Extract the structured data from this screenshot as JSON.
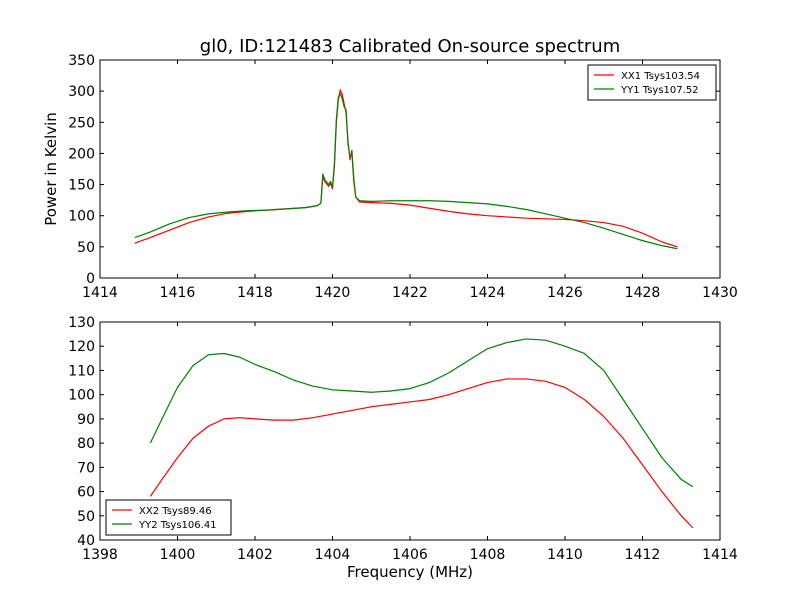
{
  "chart_data": [
    {
      "type": "line",
      "title": "gl0, ID:121483 Calibrated On-source spectrum",
      "xlabel": "",
      "ylabel": "Power in Kelvin",
      "xlim": [
        1414,
        1430
      ],
      "ylim": [
        0,
        350
      ],
      "xticks": [
        "1414",
        "1416",
        "1418",
        "1420",
        "1422",
        "1424",
        "1426",
        "1428",
        "1430"
      ],
      "yticks": [
        "0",
        "50",
        "100",
        "150",
        "200",
        "250",
        "300",
        "350"
      ],
      "grid": false,
      "legend_position": "top-right",
      "series": [
        {
          "name": "XX1 Tsys103.54",
          "color": "#ff0000",
          "x": [
            1414.9,
            1415.3,
            1415.8,
            1416.3,
            1416.8,
            1417.3,
            1417.8,
            1418.3,
            1418.8,
            1419.3,
            1419.6,
            1419.7,
            1419.75,
            1419.8,
            1419.9,
            1419.95,
            1420.0,
            1420.05,
            1420.1,
            1420.15,
            1420.2,
            1420.25,
            1420.3,
            1420.35,
            1420.4,
            1420.45,
            1420.5,
            1420.55,
            1420.6,
            1420.7,
            1421.0,
            1421.5,
            1422.0,
            1422.5,
            1423.0,
            1423.5,
            1424.0,
            1424.5,
            1425.0,
            1425.5,
            1426.0,
            1426.5,
            1427.0,
            1427.5,
            1428.0,
            1428.5,
            1428.9
          ],
          "y": [
            56,
            65,
            77,
            89,
            98,
            104,
            107,
            109,
            111,
            113,
            116,
            120,
            163,
            155,
            147,
            152,
            143,
            180,
            250,
            285,
            302,
            295,
            280,
            265,
            220,
            190,
            205,
            160,
            130,
            122,
            121,
            120,
            117,
            112,
            107,
            103,
            100,
            98,
            96,
            95,
            94,
            92,
            89,
            83,
            72,
            58,
            50
          ]
        },
        {
          "name": "YY1 Tsys107.52",
          "color": "#008000",
          "x": [
            1414.9,
            1415.3,
            1415.8,
            1416.3,
            1416.8,
            1417.3,
            1417.8,
            1418.3,
            1418.8,
            1419.3,
            1419.6,
            1419.7,
            1419.75,
            1419.8,
            1419.9,
            1419.95,
            1420.0,
            1420.05,
            1420.1,
            1420.15,
            1420.2,
            1420.25,
            1420.3,
            1420.35,
            1420.4,
            1420.45,
            1420.5,
            1420.55,
            1420.6,
            1420.7,
            1421.0,
            1421.5,
            1422.0,
            1422.5,
            1423.0,
            1423.5,
            1424.0,
            1424.5,
            1425.0,
            1425.5,
            1426.0,
            1426.5,
            1427.0,
            1427.5,
            1428.0,
            1428.5,
            1428.9
          ],
          "y": [
            65,
            74,
            87,
            97,
            103,
            106,
            108,
            109,
            111,
            113,
            116,
            120,
            167,
            158,
            150,
            155,
            145,
            185,
            255,
            290,
            296,
            288,
            275,
            270,
            215,
            195,
            200,
            155,
            130,
            124,
            123,
            124,
            124,
            124,
            123,
            121,
            119,
            115,
            110,
            103,
            96,
            89,
            80,
            70,
            60,
            52,
            47
          ]
        }
      ]
    },
    {
      "type": "line",
      "title": "",
      "xlabel": "Frequency (MHz)",
      "ylabel": "",
      "xlim": [
        1398,
        1414
      ],
      "ylim": [
        40,
        130
      ],
      "xticks": [
        "1398",
        "1400",
        "1402",
        "1404",
        "1406",
        "1408",
        "1410",
        "1412",
        "1414"
      ],
      "yticks": [
        "40",
        "50",
        "60",
        "70",
        "80",
        "90",
        "100",
        "110",
        "120",
        "130"
      ],
      "grid": false,
      "legend_position": "bottom-left",
      "series": [
        {
          "name": "XX2 Tsys89.46",
          "color": "#ff0000",
          "x": [
            1399.3,
            1399.6,
            1400.0,
            1400.4,
            1400.8,
            1401.2,
            1401.6,
            1402.0,
            1402.5,
            1403.0,
            1403.5,
            1404.0,
            1404.5,
            1405.0,
            1405.5,
            1406.0,
            1406.5,
            1407.0,
            1407.5,
            1408.0,
            1408.5,
            1409.0,
            1409.5,
            1410.0,
            1410.5,
            1411.0,
            1411.5,
            1412.0,
            1412.5,
            1413.0,
            1413.3
          ],
          "y": [
            58,
            65,
            74,
            82,
            87,
            90,
            90.5,
            90,
            89.5,
            89.5,
            90.5,
            92,
            93.5,
            95,
            96,
            97,
            98,
            100,
            102.5,
            105,
            106.5,
            106.5,
            105.5,
            103,
            98,
            91,
            82,
            71,
            60,
            50,
            45
          ]
        },
        {
          "name": "YY2 Tsys106.41",
          "color": "#008000",
          "x": [
            1399.3,
            1399.6,
            1400.0,
            1400.4,
            1400.8,
            1401.2,
            1401.6,
            1402.0,
            1402.5,
            1403.0,
            1403.5,
            1404.0,
            1404.5,
            1405.0,
            1405.5,
            1406.0,
            1406.5,
            1407.0,
            1407.5,
            1408.0,
            1408.5,
            1409.0,
            1409.5,
            1410.0,
            1410.5,
            1411.0,
            1411.5,
            1412.0,
            1412.5,
            1413.0,
            1413.3
          ],
          "y": [
            80,
            90,
            103,
            112,
            116.5,
            117,
            115.5,
            112.5,
            109.5,
            106,
            103.5,
            102,
            101.5,
            101,
            101.5,
            102.5,
            105,
            109,
            114,
            119,
            121.5,
            123,
            122.5,
            120,
            117,
            110,
            98,
            86,
            74,
            65,
            62
          ]
        }
      ]
    }
  ]
}
